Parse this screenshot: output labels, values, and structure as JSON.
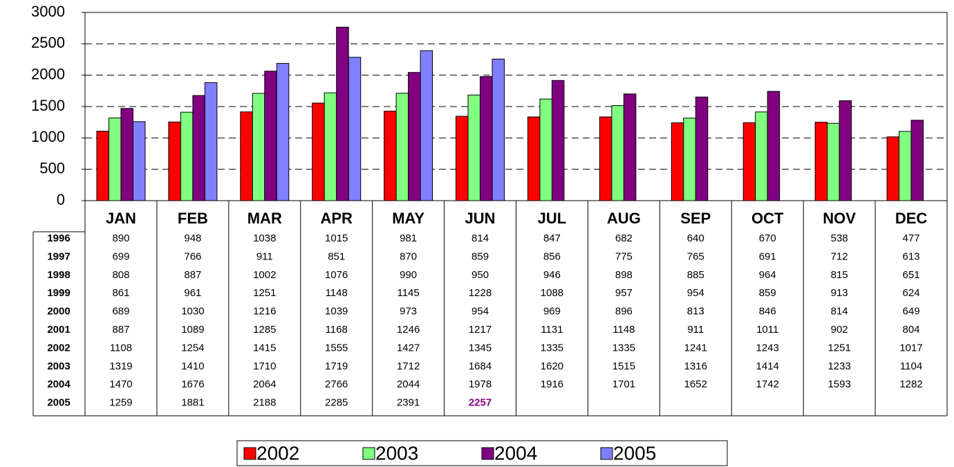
{
  "chart_data": {
    "type": "bar",
    "categories": [
      "JAN",
      "FEB",
      "MAR",
      "APR",
      "MAY",
      "JUN",
      "JUL",
      "AUG",
      "SEP",
      "OCT",
      "NOV",
      "DEC"
    ],
    "ylim": [
      0,
      3000
    ],
    "yticks": [
      0,
      500,
      1000,
      1500,
      2000,
      2500,
      3000
    ],
    "grid": true,
    "series": [
      {
        "name": "1996",
        "values": [
          890,
          948,
          1038,
          1015,
          981,
          814,
          847,
          682,
          640,
          670,
          538,
          477
        ]
      },
      {
        "name": "1997",
        "values": [
          699,
          766,
          911,
          851,
          870,
          859,
          856,
          775,
          765,
          691,
          712,
          613
        ]
      },
      {
        "name": "1998",
        "values": [
          808,
          887,
          1002,
          1076,
          990,
          950,
          946,
          898,
          885,
          964,
          815,
          651
        ]
      },
      {
        "name": "1999",
        "values": [
          861,
          961,
          1251,
          1148,
          1145,
          1228,
          1088,
          957,
          954,
          859,
          913,
          624
        ]
      },
      {
        "name": "2000",
        "values": [
          689,
          1030,
          1216,
          1039,
          973,
          954,
          969,
          896,
          813,
          846,
          814,
          649
        ]
      },
      {
        "name": "2001",
        "values": [
          887,
          1089,
          1285,
          1168,
          1246,
          1217,
          1131,
          1148,
          911,
          1011,
          902,
          804
        ]
      },
      {
        "name": "2002",
        "color": "#ff0000",
        "values": [
          1108,
          1254,
          1415,
          1555,
          1427,
          1345,
          1335,
          1335,
          1241,
          1243,
          1251,
          1017
        ]
      },
      {
        "name": "2003",
        "color": "#80ff80",
        "values": [
          1319,
          1410,
          1710,
          1719,
          1712,
          1684,
          1620,
          1515,
          1316,
          1414,
          1233,
          1104
        ]
      },
      {
        "name": "2004",
        "color": "#800080",
        "values": [
          1470,
          1676,
          2064,
          2766,
          2044,
          1978,
          1916,
          1701,
          1652,
          1742,
          1593,
          1282
        ]
      },
      {
        "name": "2005",
        "color": "#8080ff",
        "values": [
          1259,
          1881,
          2188,
          2285,
          2391,
          2257,
          null,
          null,
          null,
          null,
          null,
          null
        ]
      }
    ]
  }
}
